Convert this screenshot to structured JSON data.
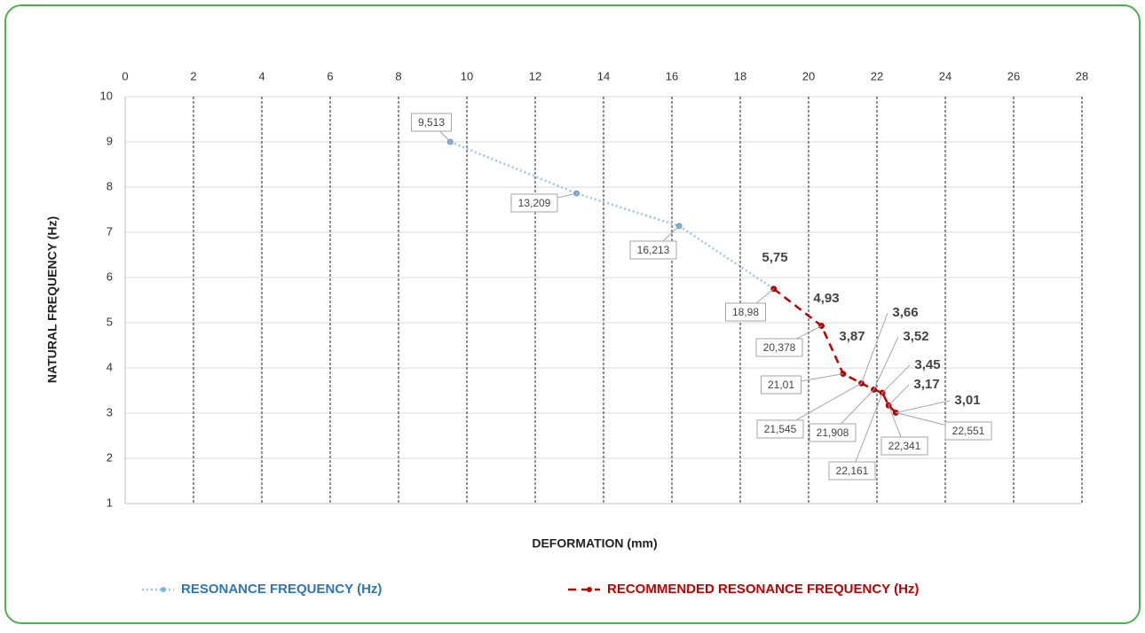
{
  "chart_data": {
    "type": "line",
    "x_label": "DEFORMATION (mm)",
    "y_label": "NATURAL FREQUENCY (Hz)",
    "xlim": [
      0,
      28
    ],
    "xticks": [
      0,
      2,
      4,
      6,
      8,
      10,
      12,
      14,
      16,
      18,
      20,
      22,
      24,
      26,
      28
    ],
    "ylim": [
      1,
      10
    ],
    "yticks": [
      1,
      2,
      3,
      4,
      5,
      6,
      7,
      8,
      9,
      10
    ],
    "grid": true,
    "legend": "bottom",
    "series": [
      {
        "name": "RESONANCE FREQUENCY (Hz)",
        "color": "#9dc3e6",
        "style": "dotted",
        "x": [
          9.513,
          13.209,
          16.213,
          18.98
        ],
        "x_value_labels": [
          "9,513",
          "13,209",
          "16,213",
          null
        ],
        "values": [
          9.0,
          7.86,
          7.14,
          5.75
        ]
      },
      {
        "name": "RECOMMENDED RESONANCE FREQUENCY (Hz)",
        "color": "#c00000",
        "style": "dashed",
        "x": [
          18.98,
          20.378,
          21.01,
          21.545,
          21.908,
          22.161,
          22.341,
          22.551
        ],
        "x_value_labels": [
          "18,98",
          "20,378",
          "21,01",
          "21,545",
          "21,908",
          "22,161",
          "22,341",
          "22,551"
        ],
        "values": [
          5.75,
          4.93,
          3.87,
          3.66,
          3.52,
          3.45,
          3.17,
          3.01
        ],
        "value_labels": [
          "5,75",
          "4,93",
          "3,87",
          "3,66",
          "3,52",
          "3,45",
          "3,17",
          "3,01"
        ]
      }
    ]
  }
}
